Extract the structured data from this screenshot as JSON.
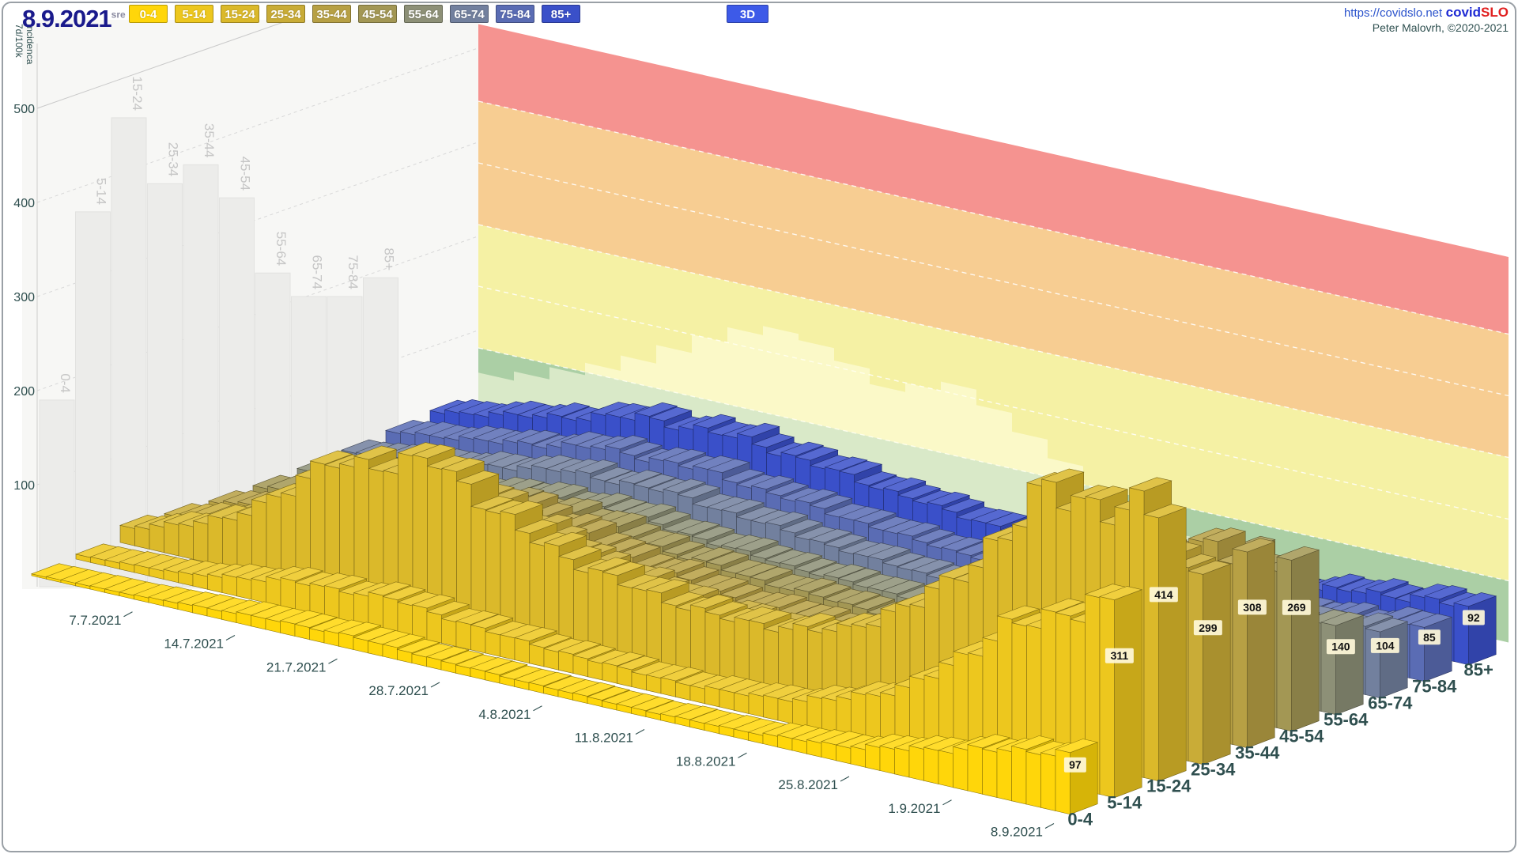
{
  "page": {
    "border_color": "#9aa0a6"
  },
  "header": {
    "date": "8.9.2021",
    "weekday": "sre",
    "age_buttons": [
      {
        "label": "0-4",
        "color": "#FFD60A"
      },
      {
        "label": "5-14",
        "color": "#EDC71E"
      },
      {
        "label": "15-24",
        "color": "#DBB92A"
      },
      {
        "label": "25-34",
        "color": "#C9AC37"
      },
      {
        "label": "35-44",
        "color": "#B7A044"
      },
      {
        "label": "45-54",
        "color": "#A39754"
      },
      {
        "label": "55-64",
        "color": "#8D9077"
      },
      {
        "label": "65-74",
        "color": "#72809E"
      },
      {
        "label": "75-84",
        "color": "#5A6CB4"
      },
      {
        "label": "85+",
        "color": "#3A50C9"
      }
    ],
    "mode_button": {
      "label": "3D",
      "color": "#3D5AE8"
    },
    "site_link": "https://covidslo.net",
    "brand_covid": "covid",
    "brand_slo": "SLO",
    "credit": "Peter Malovrh, ©2020-2021"
  },
  "axis": {
    "title_line1": "7d/100k",
    "title_line2": "Incidenca",
    "ticks": [
      500,
      400,
      300,
      200,
      100
    ],
    "label_color": "#2F4F4F"
  },
  "chart_data": {
    "type": "bar",
    "subtype": "3d-bar-rows",
    "title": "",
    "ylabel": "7d/100k Incidenca",
    "ylim": [
      0,
      625
    ],
    "grid": "dashed",
    "date_ticks": [
      "7.7.2021",
      "14.7.2021",
      "21.7.2021",
      "28.7.2021",
      "4.8.2021",
      "11.8.2021",
      "18.8.2021",
      "25.8.2021",
      "1.9.2021",
      "8.9.2021"
    ],
    "days_total": 71,
    "first_tick_day": 7,
    "tick_step_days": 7,
    "age_groups": [
      "0-4",
      "5-14",
      "15-24",
      "25-34",
      "35-44",
      "45-54",
      "55-64",
      "65-74",
      "75-84",
      "85+"
    ],
    "series": [
      {
        "name": "0-4",
        "color": "#FFD60A",
        "weekly_values": [
          2,
          5,
          12,
          16,
          11,
          9,
          8,
          12,
          26,
          60,
          97
        ],
        "current": 97
      },
      {
        "name": "5-14",
        "color": "#EDC71E",
        "weekly_values": [
          5,
          12,
          32,
          40,
          28,
          22,
          20,
          34,
          85,
          215,
          311
        ],
        "current": 311
      },
      {
        "name": "15-24",
        "color": "#DBB92A",
        "weekly_values": [
          18,
          55,
          150,
          185,
          120,
          92,
          84,
          108,
          210,
          400,
          414
        ],
        "current": 414
      },
      {
        "name": "25-34",
        "color": "#C9AC37",
        "weekly_values": [
          14,
          40,
          95,
          125,
          80,
          58,
          52,
          72,
          140,
          265,
          299
        ],
        "current": 299
      },
      {
        "name": "35-44",
        "color": "#B7A044",
        "weekly_values": [
          10,
          30,
          70,
          92,
          60,
          42,
          38,
          58,
          118,
          255,
          308
        ],
        "current": 308
      },
      {
        "name": "45-54",
        "color": "#A39754",
        "weekly_values": [
          8,
          24,
          52,
          65,
          46,
          36,
          32,
          48,
          98,
          215,
          269
        ],
        "current": 269
      },
      {
        "name": "55-64",
        "color": "#8D9077",
        "weekly_values": [
          8,
          20,
          40,
          48,
          36,
          28,
          25,
          33,
          58,
          112,
          140
        ],
        "current": 140
      },
      {
        "name": "65-74",
        "color": "#72809E",
        "weekly_values": [
          10,
          24,
          46,
          52,
          42,
          30,
          24,
          27,
          44,
          84,
          104
        ],
        "current": 104
      },
      {
        "name": "75-84",
        "color": "#5A6CB4",
        "weekly_values": [
          14,
          30,
          52,
          56,
          44,
          33,
          26,
          24,
          34,
          66,
          85
        ],
        "current": 85
      },
      {
        "name": "85+",
        "color": "#3A50C9",
        "weekly_values": [
          18,
          40,
          68,
          72,
          58,
          44,
          34,
          30,
          42,
          74,
          92
        ],
        "current": 92
      }
    ],
    "current_values": [
      97,
      311,
      414,
      299,
      308,
      269,
      140,
      104,
      85,
      92
    ],
    "ghost_wall_profile": {
      "comment": "faded 2D bar chart on left wall, by age group",
      "values": [
        190,
        390,
        490,
        420,
        440,
        405,
        325,
        300,
        300,
        320
      ],
      "bar_color": "#ECECEA",
      "label_color": "#C6C6C6"
    },
    "wall_shadow_profile": [
      60,
      75,
      95,
      115,
      140,
      170,
      200,
      225,
      240,
      230,
      210,
      185,
      200,
      215,
      190,
      160,
      130,
      100,
      75,
      55
    ],
    "risk_bands": [
      {
        "name": "red",
        "color": "#F59390",
        "from": 500,
        "to": 625
      },
      {
        "name": "orange",
        "color": "#F7CD92",
        "from": 300,
        "to": 500
      },
      {
        "name": "yellow",
        "color": "#F5F1A4",
        "from": 100,
        "to": 300
      },
      {
        "name": "green",
        "color": "#ABCFA5",
        "from": 0,
        "to": 100
      }
    ]
  }
}
